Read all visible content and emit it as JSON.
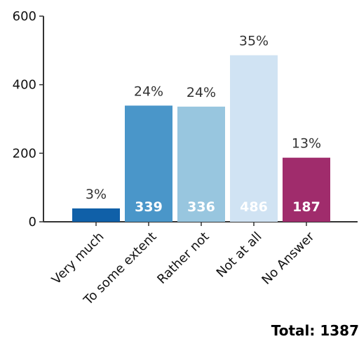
{
  "chart_data": {
    "type": "bar",
    "categories": [
      "Very much",
      "To some extent",
      "Rather not",
      "Not at all",
      "No Answer"
    ],
    "values": [
      39,
      339,
      336,
      486,
      187
    ],
    "percent_labels": [
      "3%",
      "24%",
      "24%",
      "35%",
      "13%"
    ],
    "count_labels": [
      "",
      "339",
      "336",
      "486",
      "187"
    ],
    "colors": [
      "#1060a8",
      "#4a96c9",
      "#98c6df",
      "#d0e3f3",
      "#a02c6c"
    ],
    "ylim": [
      0,
      600
    ],
    "yticks": [
      0,
      200,
      400,
      600
    ],
    "ytick_labels": [
      "0",
      "200",
      "400",
      "600"
    ],
    "grid": false,
    "legend": "none"
  },
  "total_label": "Total: 1387"
}
